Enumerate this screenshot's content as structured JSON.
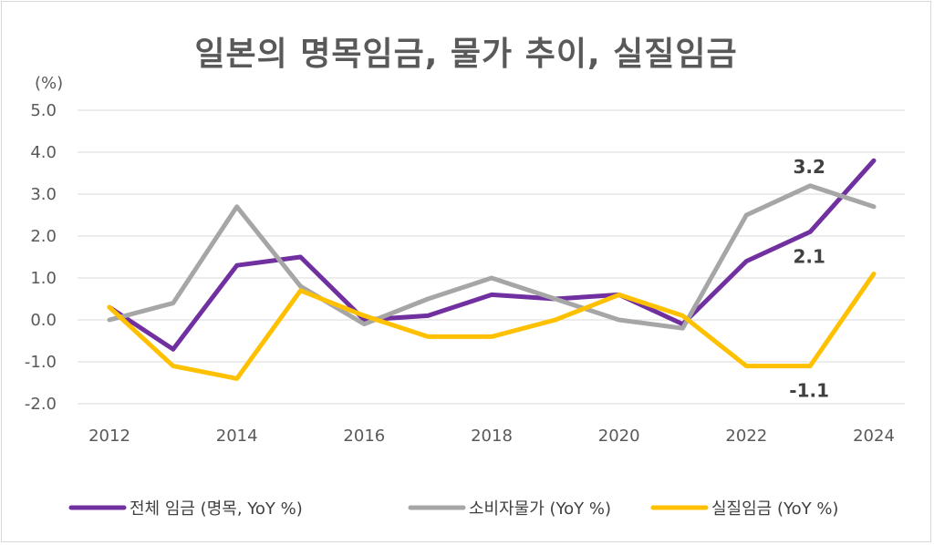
{
  "chart_data": {
    "type": "line",
    "title": "일본의 명목임금, 물가 추이, 실질임금",
    "unit_label": "(%)",
    "x": [
      2012,
      2013,
      2014,
      2015,
      2016,
      2017,
      2018,
      2019,
      2020,
      2021,
      2022,
      2023,
      2024
    ],
    "x_tick_labels": [
      "2012",
      "2014",
      "2016",
      "2018",
      "2020",
      "2022",
      "2024"
    ],
    "x_tick_values": [
      2012,
      2014,
      2016,
      2018,
      2020,
      2022,
      2024
    ],
    "ylim": [
      -2.0,
      5.0
    ],
    "y_ticks": [
      -2.0,
      -1.0,
      0.0,
      1.0,
      2.0,
      3.0,
      4.0,
      5.0
    ],
    "y_tick_labels": [
      "-2.0",
      "-1.0",
      "0.0",
      "1.0",
      "2.0",
      "3.0",
      "4.0",
      "5.0"
    ],
    "grid": true,
    "legend_position": "bottom",
    "series": [
      {
        "name": "전체 임금 (명목, YoY %)",
        "color": "#7030a0",
        "values": [
          0.3,
          -0.7,
          1.3,
          1.5,
          0.0,
          0.1,
          0.6,
          0.5,
          0.6,
          -0.1,
          1.4,
          2.1,
          3.8
        ]
      },
      {
        "name": "소비자물가 (YoY %)",
        "color": "#a6a6a6",
        "values": [
          0.0,
          0.4,
          2.7,
          0.8,
          -0.1,
          0.5,
          1.0,
          0.5,
          0.0,
          -0.2,
          2.5,
          3.2,
          2.7
        ]
      },
      {
        "name": "실질임금 (YoY %)",
        "color": "#ffc000",
        "values": [
          0.3,
          -1.1,
          -1.4,
          0.7,
          0.1,
          -0.4,
          -0.4,
          0.0,
          0.6,
          0.1,
          -1.1,
          -1.1,
          1.1
        ]
      }
    ],
    "annotations": [
      {
        "text": "3.2",
        "x": 2023,
        "y": 3.2,
        "placement": "above"
      },
      {
        "text": "2.1",
        "x": 2023,
        "y": 2.1,
        "placement": "below"
      },
      {
        "text": "-1.1",
        "x": 2023,
        "y": -1.1,
        "placement": "below"
      }
    ]
  }
}
